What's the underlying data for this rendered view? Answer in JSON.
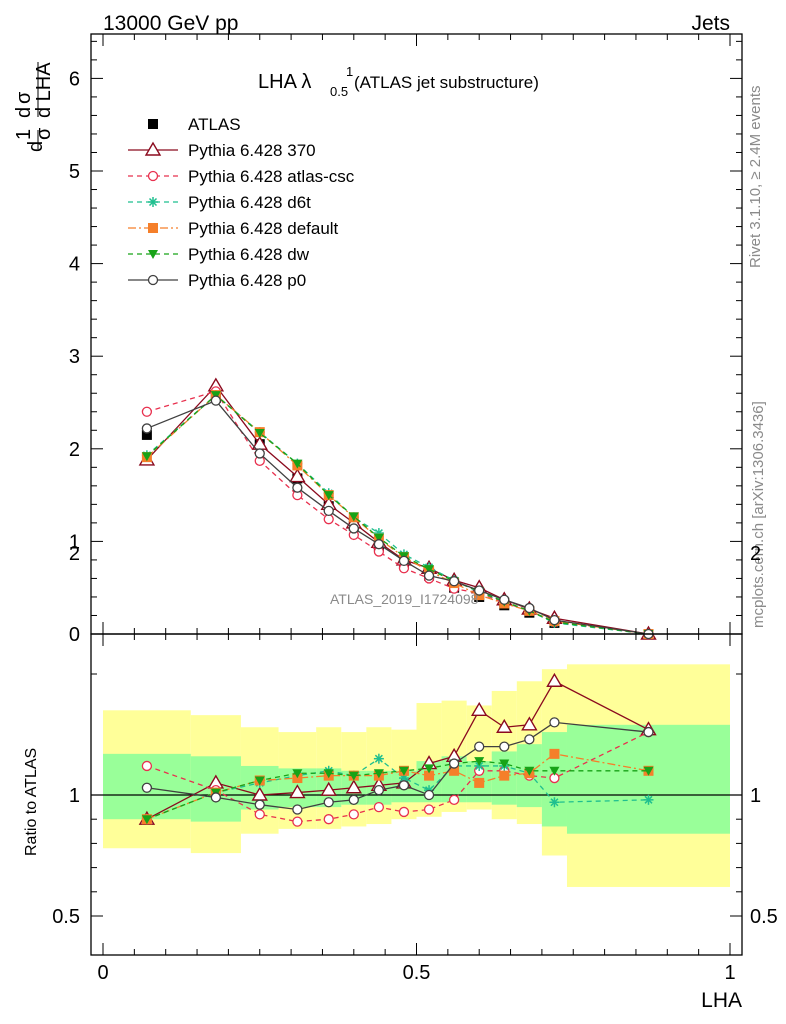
{
  "header": {
    "left": "13000 GeV pp",
    "right": "Jets"
  },
  "side_labels": {
    "rivet": "Rivet 3.1.10, ≥ 2.4M events",
    "mcplots": "mcplots.cern.ch [arXiv:1306.3436]"
  },
  "watermark": "ATLAS_2019_I1724098",
  "colors": {
    "yellow_band": "#ffff99",
    "green_band": "#99ff99",
    "series": {
      "ATLAS": "#000000",
      "Pythia 6.428 370": "#8b0a1e",
      "Pythia 6.428 atlas-csc": "#e8304e",
      "Pythia 6.428 d6t": "#1fbf8f",
      "Pythia 6.428 default": "#f57f2a",
      "Pythia 6.428 dw": "#17a317",
      "Pythia 6.428 p0": "#404040"
    }
  },
  "chart_data": {
    "type": "line",
    "title_main": "LHA λ",
    "title_sup": "1",
    "title_sub": "0.5",
    "title_rest": " (ATLAS jet substructure)",
    "xlabel": "LHA",
    "ylabel": "1/σ dσ/d LHA",
    "ratio_ylabel": "Ratio to ATLAS",
    "xlim": [
      -0.02,
      1.02
    ],
    "ylim_main": [
      0,
      6.5
    ],
    "ylim_ratio": [
      0.35,
      2.3
    ],
    "x_ticks": [
      0,
      0.5,
      1
    ],
    "x_tick_labels": [
      "0",
      "0.5",
      "1"
    ],
    "main_y_ticks": [
      0,
      1,
      2,
      3,
      4,
      5,
      6
    ],
    "main_y_tick_labels": [
      "0",
      "1",
      "2",
      "3",
      "4",
      "5",
      "6"
    ],
    "ratio_y_ticks": [
      0.5,
      1,
      2
    ],
    "ratio_y_tick_labels": [
      "0.5",
      "1",
      "2"
    ],
    "legend_position": "top-left",
    "bin_edges": [
      0,
      0.14,
      0.22,
      0.28,
      0.34,
      0.38,
      0.42,
      0.46,
      0.5,
      0.54,
      0.58,
      0.62,
      0.66,
      0.7,
      0.74,
      1.0
    ],
    "x": [
      0.07,
      0.18,
      0.25,
      0.31,
      0.36,
      0.4,
      0.44,
      0.48,
      0.52,
      0.56,
      0.6,
      0.64,
      0.68,
      0.72,
      0.87
    ],
    "series": [
      {
        "name": "ATLAS",
        "marker": "filled-square",
        "dash": "none",
        "values": [
          2.15,
          2.55,
          2.05,
          1.68,
          1.38,
          1.17,
          0.95,
          0.76,
          0.63,
          0.5,
          0.4,
          0.31,
          0.23,
          0.12,
          0.0
        ]
      },
      {
        "name": "Pythia 6.428 370",
        "marker": "open-triangle",
        "dash": "solid",
        "values": [
          1.88,
          2.68,
          2.05,
          1.7,
          1.4,
          1.2,
          0.99,
          0.8,
          0.71,
          0.58,
          0.5,
          0.37,
          0.27,
          0.17,
          0.0
        ]
      },
      {
        "name": "Pythia 6.428 atlas-csc",
        "marker": "open-circle",
        "dash": "dashed",
        "values": [
          2.4,
          2.62,
          1.87,
          1.5,
          1.24,
          1.07,
          0.89,
          0.71,
          0.6,
          0.49,
          0.44,
          0.34,
          0.25,
          0.13,
          0.0
        ]
      },
      {
        "name": "Pythia 6.428 d6t",
        "marker": "star",
        "dash": "dashed",
        "values": [
          1.93,
          2.58,
          2.18,
          1.84,
          1.52,
          1.26,
          1.09,
          0.86,
          0.72,
          0.58,
          0.45,
          0.35,
          0.25,
          0.12,
          0.0
        ]
      },
      {
        "name": "Pythia 6.428 default",
        "marker": "filled-square",
        "dash": "dashdot",
        "values": [
          1.91,
          2.58,
          2.18,
          1.82,
          1.5,
          1.26,
          1.03,
          0.83,
          0.68,
          0.55,
          0.42,
          0.33,
          0.25,
          0.14,
          0.0
        ]
      },
      {
        "name": "Pythia 6.428 dw",
        "marker": "filled-triangle-down",
        "dash": "dashed",
        "values": [
          1.92,
          2.58,
          2.17,
          1.84,
          1.5,
          1.27,
          1.04,
          0.84,
          0.7,
          0.57,
          0.46,
          0.35,
          0.25,
          0.13,
          0.0
        ]
      },
      {
        "name": "Pythia 6.428 p0",
        "marker": "open-circle",
        "dash": "solid",
        "values": [
          2.22,
          2.52,
          1.95,
          1.58,
          1.33,
          1.14,
          0.97,
          0.79,
          0.63,
          0.57,
          0.47,
          0.37,
          0.28,
          0.15,
          0.0
        ]
      }
    ],
    "ratio_series": [
      {
        "name": "Pythia 6.428 370",
        "values": [
          0.9,
          1.05,
          1.0,
          1.01,
          1.02,
          1.03,
          1.04,
          1.05,
          1.13,
          1.16,
          1.35,
          1.28,
          1.29,
          1.47,
          1.27
        ]
      },
      {
        "name": "Pythia 6.428 atlas-csc",
        "values": [
          1.12,
          1.02,
          0.92,
          0.89,
          0.9,
          0.92,
          0.95,
          0.93,
          0.94,
          0.98,
          1.1,
          1.1,
          1.08,
          1.07,
          1.26
        ]
      },
      {
        "name": "Pythia 6.428 d6t",
        "values": [
          0.9,
          1.01,
          1.05,
          1.08,
          1.1,
          1.08,
          1.15,
          1.07,
          1.02,
          1.12,
          1.12,
          1.12,
          1.09,
          0.97,
          0.98
        ]
      },
      {
        "name": "Pythia 6.428 default",
        "values": [
          0.9,
          1.01,
          1.06,
          1.07,
          1.08,
          1.08,
          1.08,
          1.1,
          1.08,
          1.1,
          1.05,
          1.08,
          1.09,
          1.17,
          1.1
        ]
      },
      {
        "name": "Pythia 6.428 dw",
        "values": [
          0.9,
          1.01,
          1.06,
          1.09,
          1.09,
          1.08,
          1.09,
          1.1,
          1.11,
          1.13,
          1.14,
          1.13,
          1.1,
          1.1,
          1.1
        ]
      },
      {
        "name": "Pythia 6.428 p0",
        "values": [
          1.03,
          0.99,
          0.96,
          0.94,
          0.97,
          0.98,
          1.02,
          1.04,
          1.0,
          1.13,
          1.2,
          1.2,
          1.23,
          1.3,
          1.26
        ]
      }
    ],
    "ratio_bands": {
      "yellow": [
        [
          0.78,
          1.35
        ],
        [
          0.76,
          1.33
        ],
        [
          0.84,
          1.28
        ],
        [
          0.86,
          1.26
        ],
        [
          0.86,
          1.28
        ],
        [
          0.87,
          1.26
        ],
        [
          0.88,
          1.28
        ],
        [
          0.9,
          1.27
        ],
        [
          0.91,
          1.38
        ],
        [
          0.93,
          1.39
        ],
        [
          0.94,
          1.37
        ],
        [
          0.9,
          1.43
        ],
        [
          0.88,
          1.47
        ],
        [
          0.75,
          1.52
        ],
        [
          0.62,
          1.54
        ]
      ],
      "green": [
        [
          0.9,
          1.17
        ],
        [
          0.89,
          1.16
        ],
        [
          0.94,
          1.12
        ],
        [
          0.95,
          1.11
        ],
        [
          0.95,
          1.11
        ],
        [
          0.96,
          1.1
        ],
        [
          0.96,
          1.1
        ],
        [
          0.97,
          1.1
        ],
        [
          0.97,
          1.14
        ],
        [
          0.97,
          1.16
        ],
        [
          0.97,
          1.14
        ],
        [
          0.96,
          1.18
        ],
        [
          0.95,
          1.21
        ],
        [
          0.87,
          1.26
        ],
        [
          0.84,
          1.29
        ]
      ]
    }
  }
}
